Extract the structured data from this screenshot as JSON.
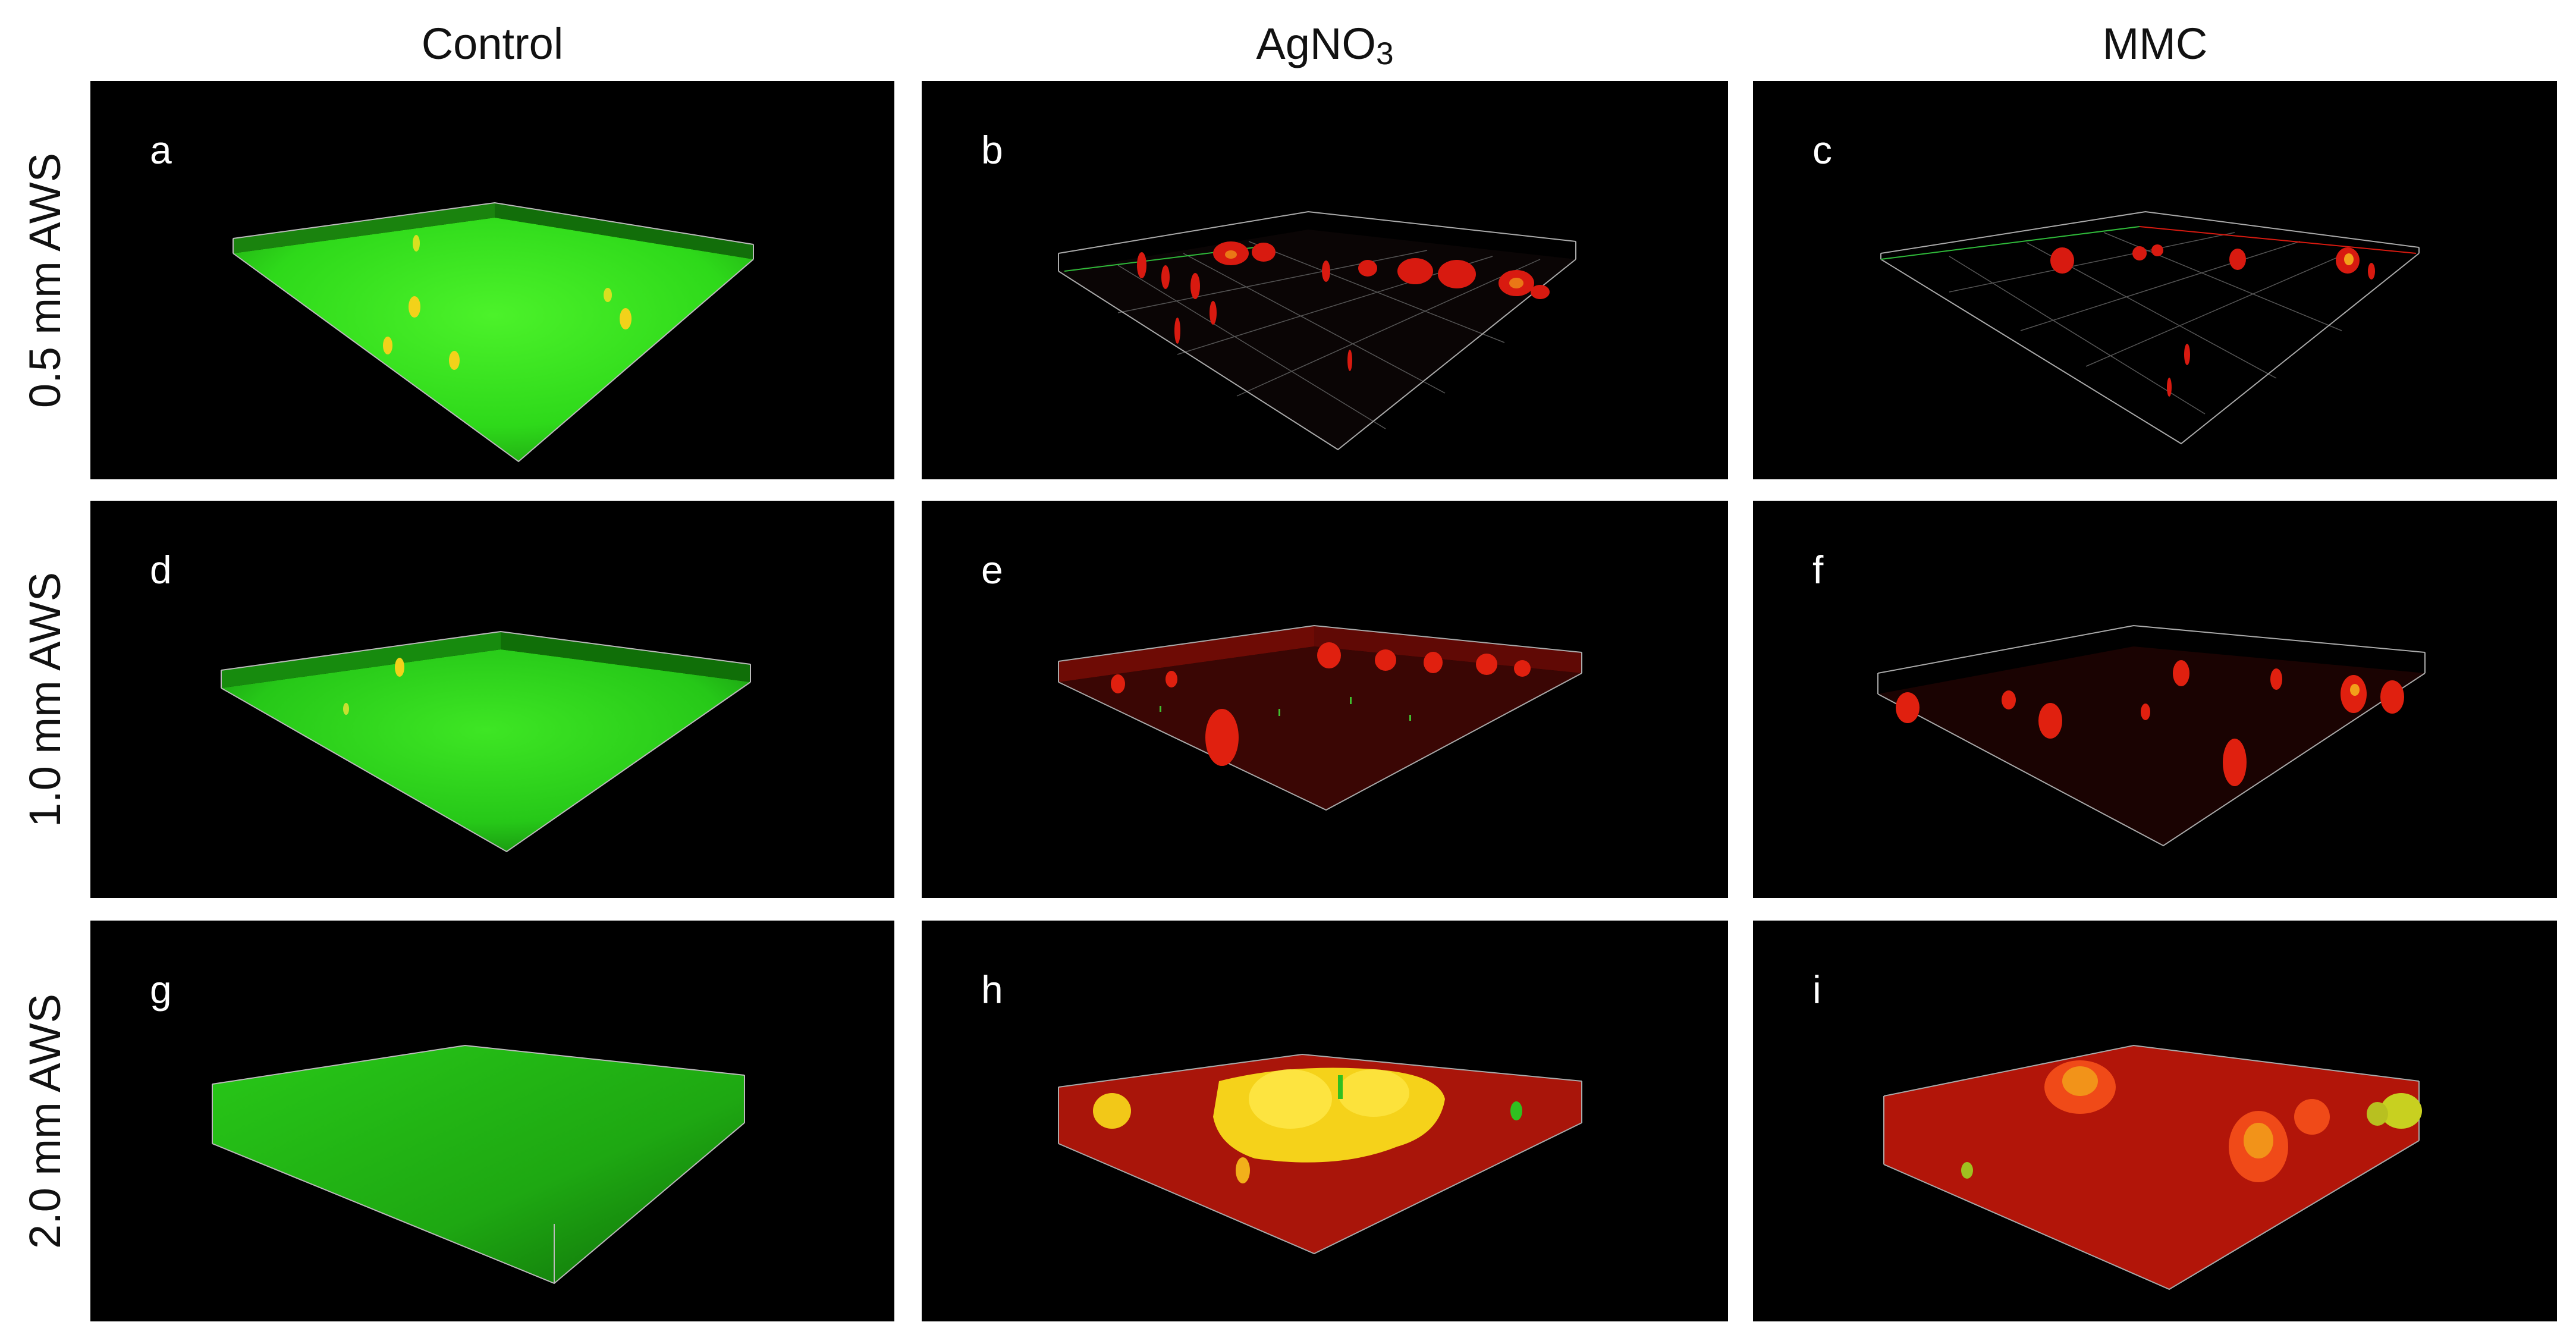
{
  "figure": {
    "columns": [
      "Control",
      "AgNO",
      "MMC"
    ],
    "agno3_subscript": "3",
    "rows": [
      "0.5 mm AWS",
      "1.0 mm AWS",
      "2.0 mm AWS"
    ],
    "panels": [
      {
        "letter": "a",
        "treatment": "Control",
        "row": "0.5 mm AWS"
      },
      {
        "letter": "b",
        "treatment": "AgNO3",
        "row": "0.5 mm AWS"
      },
      {
        "letter": "c",
        "treatment": "MMC",
        "row": "0.5 mm AWS"
      },
      {
        "letter": "d",
        "treatment": "Control",
        "row": "1.0 mm AWS"
      },
      {
        "letter": "e",
        "treatment": "AgNO3",
        "row": "1.0 mm AWS"
      },
      {
        "letter": "f",
        "treatment": "MMC",
        "row": "1.0 mm AWS"
      },
      {
        "letter": "g",
        "treatment": "Control",
        "row": "2.0 mm AWS"
      },
      {
        "letter": "h",
        "treatment": "AgNO3",
        "row": "2.0 mm AWS"
      },
      {
        "letter": "i",
        "treatment": "MMC",
        "row": "2.0 mm AWS"
      }
    ]
  },
  "colors": {
    "live_green": "#2fe01a",
    "dead_red": "#d81a10",
    "overlap_yellow": "#f2d21a",
    "background": "#000000"
  }
}
